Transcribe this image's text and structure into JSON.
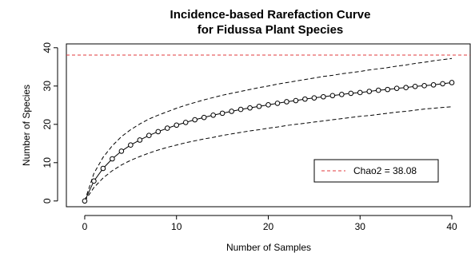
{
  "chart_data": {
    "type": "line",
    "title_lines": [
      "Incidence-based Rarefaction Curve",
      "for Fidussa Plant Species"
    ],
    "xlabel": "Number of Samples",
    "ylabel": "Number of Species",
    "xlim": [
      -2,
      42
    ],
    "ylim": [
      -1.5,
      41
    ],
    "x_ticks": [
      0,
      10,
      20,
      30,
      40
    ],
    "y_ticks": [
      0,
      10,
      20,
      30,
      40
    ],
    "grid": false,
    "legend_position": "lower-right",
    "series": [
      {
        "role": "mean",
        "style": "solid line with open circles",
        "color": "#000000",
        "x": [
          0,
          1,
          2,
          3,
          4,
          5,
          6,
          7,
          8,
          9,
          10,
          11,
          12,
          13,
          14,
          15,
          16,
          17,
          18,
          19,
          20,
          21,
          22,
          23,
          24,
          25,
          26,
          27,
          28,
          29,
          30,
          31,
          32,
          33,
          34,
          35,
          36,
          37,
          38,
          39,
          40
        ],
        "y": [
          0.0,
          5.2,
          8.5,
          11.0,
          13.0,
          14.6,
          15.9,
          17.1,
          18.1,
          19.0,
          19.8,
          20.5,
          21.2,
          21.8,
          22.4,
          22.9,
          23.4,
          23.9,
          24.3,
          24.7,
          25.1,
          25.5,
          25.9,
          26.2,
          26.6,
          26.9,
          27.2,
          27.5,
          27.8,
          28.1,
          28.3,
          28.6,
          28.9,
          29.1,
          29.4,
          29.6,
          29.9,
          30.1,
          30.3,
          30.6,
          30.9
        ]
      },
      {
        "role": "upper",
        "style": "dashed",
        "color": "#000000",
        "x": [
          0,
          1,
          2,
          3,
          4,
          5,
          6,
          7,
          8,
          9,
          10,
          11,
          12,
          13,
          14,
          15,
          16,
          17,
          18,
          19,
          20,
          21,
          22,
          23,
          24,
          25,
          26,
          27,
          28,
          29,
          30,
          31,
          32,
          33,
          34,
          35,
          36,
          37,
          38,
          39,
          40
        ],
        "y": [
          0.0,
          7.2,
          11.4,
          14.4,
          16.8,
          18.6,
          20.1,
          21.4,
          22.4,
          23.3,
          24.2,
          25.0,
          25.7,
          26.4,
          27.0,
          27.6,
          28.1,
          28.6,
          29.1,
          29.6,
          30.0,
          30.5,
          30.9,
          31.3,
          31.7,
          32.1,
          32.5,
          32.8,
          33.2,
          33.5,
          33.8,
          34.2,
          34.5,
          34.8,
          35.2,
          35.5,
          35.9,
          36.2,
          36.6,
          36.9,
          37.2
        ]
      },
      {
        "role": "lower",
        "style": "dashed",
        "color": "#000000",
        "x": [
          0,
          1,
          2,
          3,
          4,
          5,
          6,
          7,
          8,
          9,
          10,
          11,
          12,
          13,
          14,
          15,
          16,
          17,
          18,
          19,
          20,
          21,
          22,
          23,
          24,
          25,
          26,
          27,
          28,
          29,
          30,
          31,
          32,
          33,
          34,
          35,
          36,
          37,
          38,
          39,
          40
        ],
        "y": [
          0.0,
          3.5,
          6.0,
          7.9,
          9.4,
          10.6,
          11.6,
          12.5,
          13.3,
          14.0,
          14.6,
          15.2,
          15.7,
          16.2,
          16.6,
          17.1,
          17.5,
          17.9,
          18.3,
          18.6,
          19.0,
          19.3,
          19.7,
          20.0,
          20.3,
          20.6,
          20.9,
          21.2,
          21.5,
          21.8,
          22.1,
          22.3,
          22.6,
          22.9,
          23.2,
          23.4,
          23.7,
          24.0,
          24.2,
          24.4,
          24.6
        ]
      }
    ],
    "reference_line": {
      "label": "Chao2 = 38.08",
      "y": 38.08,
      "color": "#e0393e",
      "style": "dashed"
    }
  }
}
